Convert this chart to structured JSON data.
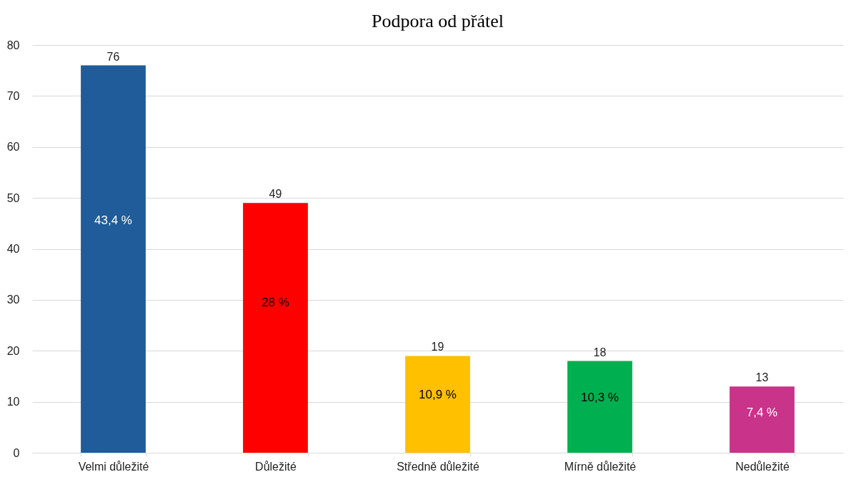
{
  "chart_data": {
    "type": "bar",
    "title": "Podpora od přátel",
    "categories": [
      "Velmi důležité",
      "Důležité",
      "Středně důležité",
      "Mírně důležité",
      "Nedůležité"
    ],
    "values": [
      76,
      49,
      19,
      18,
      13
    ],
    "colors": [
      "#1f5c99",
      "#ff0000",
      "#ffc000",
      "#00b050",
      "#c9338a"
    ],
    "ylim": [
      0,
      80
    ],
    "yticks": [
      0,
      10,
      20,
      30,
      40,
      50,
      60,
      70,
      80
    ],
    "grid": "y",
    "data_labels": true,
    "annotations": [
      "43,4 %",
      "28 %",
      "10,9 %",
      "10,3 %",
      "7,4 %"
    ]
  }
}
